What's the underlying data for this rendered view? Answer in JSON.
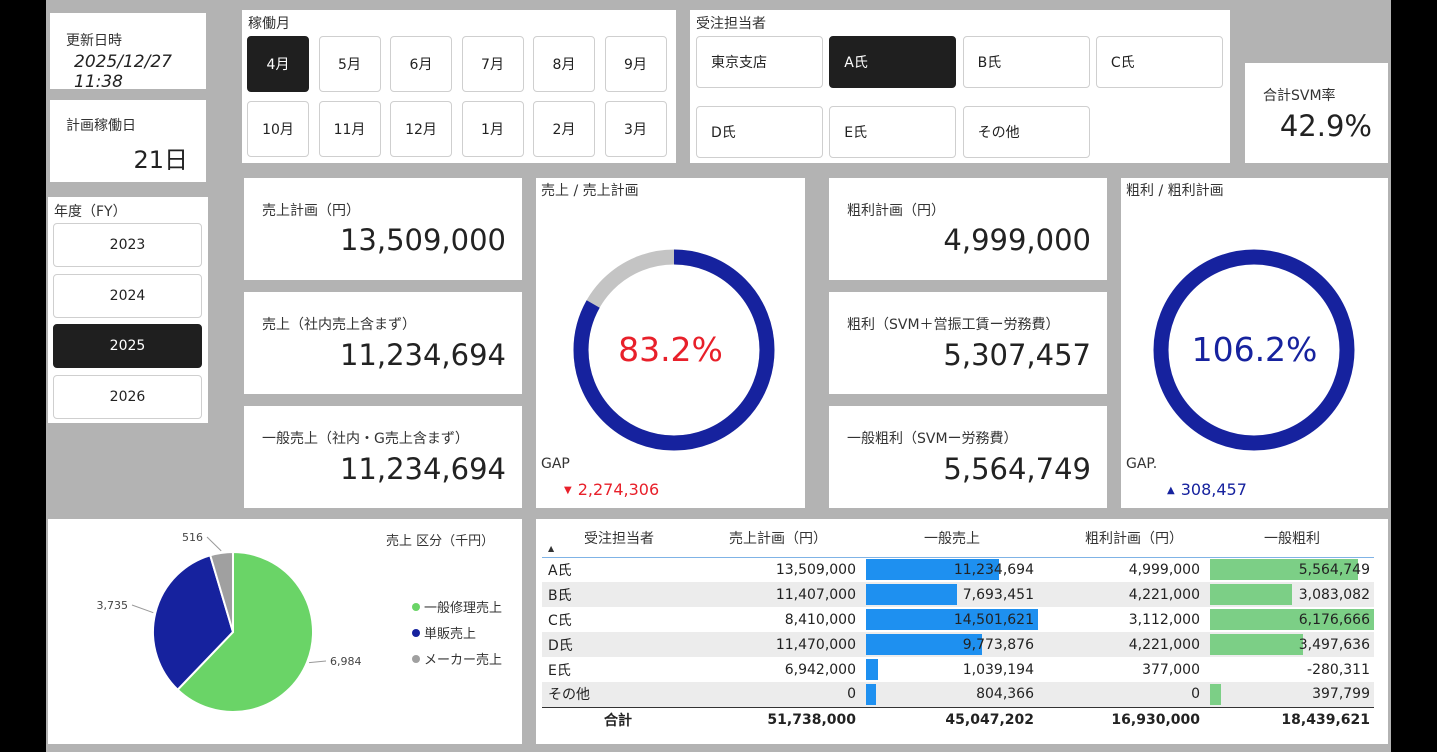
{
  "updated": {
    "label": "更新日時",
    "value": "2025/12/27 11:38"
  },
  "plan_days": {
    "label": "計画稼働日",
    "value": "21日"
  },
  "fiscal_year": {
    "label": "年度（FY）",
    "options": [
      "2023",
      "2024",
      "2025",
      "2026"
    ],
    "selected": "2025"
  },
  "months": {
    "label": "稼働月",
    "options": [
      "4月",
      "5月",
      "6月",
      "7月",
      "8月",
      "9月",
      "10月",
      "11月",
      "12月",
      "1月",
      "2月",
      "3月"
    ],
    "selected": "4月"
  },
  "assignee": {
    "label": "受注担当者",
    "options": [
      "東京支店",
      "A氏",
      "B氏",
      "C氏",
      "D氏",
      "E氏",
      "その他"
    ],
    "selected": "A氏"
  },
  "svm": {
    "label": "合計SVM率",
    "value": "42.9%"
  },
  "sales": {
    "plan_label": "売上計画（円）",
    "plan_value": "13,509,000",
    "actual_label": "売上（社内売上含まず）",
    "actual_value": "11,234,694",
    "general_label": "一般売上（社内・G売上含まず）",
    "general_value": "11,234,694"
  },
  "sales_ratio": {
    "title": "売上 / 売上計画",
    "value": "83.2%",
    "ratio": 0.832,
    "gap_label": "GAP",
    "gap_arrow": "▼",
    "gap_value": "2,274,306",
    "color": "#16229e",
    "rest_color": "#c4c4c4",
    "value_color": "#e8202a"
  },
  "profit": {
    "plan_label": "粗利計画（円）",
    "plan_value": "4,999,000",
    "actual_label": "粗利（SVM＋営振工賃ー労務費）",
    "actual_value": "5,307,457",
    "general_label": "一般粗利（SVMー労務費）",
    "general_value": "5,564,749"
  },
  "profit_ratio": {
    "title": "粗利 / 粗利計画",
    "value": "106.2%",
    "ratio": 1.0,
    "gap_label": "GAP.",
    "gap_arrow": "▲",
    "gap_value": "308,457",
    "color": "#16229e",
    "value_color": "#16229e"
  },
  "pie": {
    "title": "売上 区分（千円）",
    "legend": [
      "一般修理売上",
      "単販売上",
      "メーカー売上"
    ]
  },
  "chart_data": {
    "type": "pie",
    "title": "売上 区分（千円）",
    "categories": [
      "一般修理売上",
      "単販売上",
      "メーカー売上"
    ],
    "values": [
      6984,
      3735,
      516
    ],
    "labels": [
      "6,984",
      "3,735",
      "516"
    ],
    "colors": [
      "#6ad467",
      "#16229e",
      "#a0a0a0"
    ]
  },
  "table": {
    "headers": [
      "受注担当者",
      "売上計画（円）",
      "一般売上",
      "粗利計画（円）",
      "一般粗利"
    ],
    "sort_indicator": "▲",
    "rows": [
      {
        "name": "A氏",
        "plan": "13,509,000",
        "sales": "11,234,694",
        "sales_v": 11234694,
        "pplan": "4,999,000",
        "profit": "5,564,749",
        "profit_v": 5564749
      },
      {
        "name": "B氏",
        "plan": "11,407,000",
        "sales": "7,693,451",
        "sales_v": 7693451,
        "pplan": "4,221,000",
        "profit": "3,083,082",
        "profit_v": 3083082
      },
      {
        "name": "C氏",
        "plan": "8,410,000",
        "sales": "14,501,621",
        "sales_v": 14501621,
        "pplan": "3,112,000",
        "profit": "6,176,666",
        "profit_v": 6176666
      },
      {
        "name": "D氏",
        "plan": "11,470,000",
        "sales": "9,773,876",
        "sales_v": 9773876,
        "pplan": "4,221,000",
        "profit": "3,497,636",
        "profit_v": 3497636
      },
      {
        "name": "E氏",
        "plan": "6,942,000",
        "sales": "1,039,194",
        "sales_v": 1039194,
        "pplan": "377,000",
        "profit": "-280,311",
        "profit_v": -280311
      },
      {
        "name": "その他",
        "plan": "0",
        "sales": "804,366",
        "sales_v": 804366,
        "pplan": "0",
        "profit": "397,799",
        "profit_v": 397799
      }
    ],
    "total": {
      "name": "合計",
      "plan": "51,738,000",
      "sales": "45,047,202",
      "pplan": "16,930,000",
      "profit": "18,439,621"
    },
    "bar_colors": {
      "sales": "#1e90f0",
      "profit": "#7ccf86"
    }
  }
}
